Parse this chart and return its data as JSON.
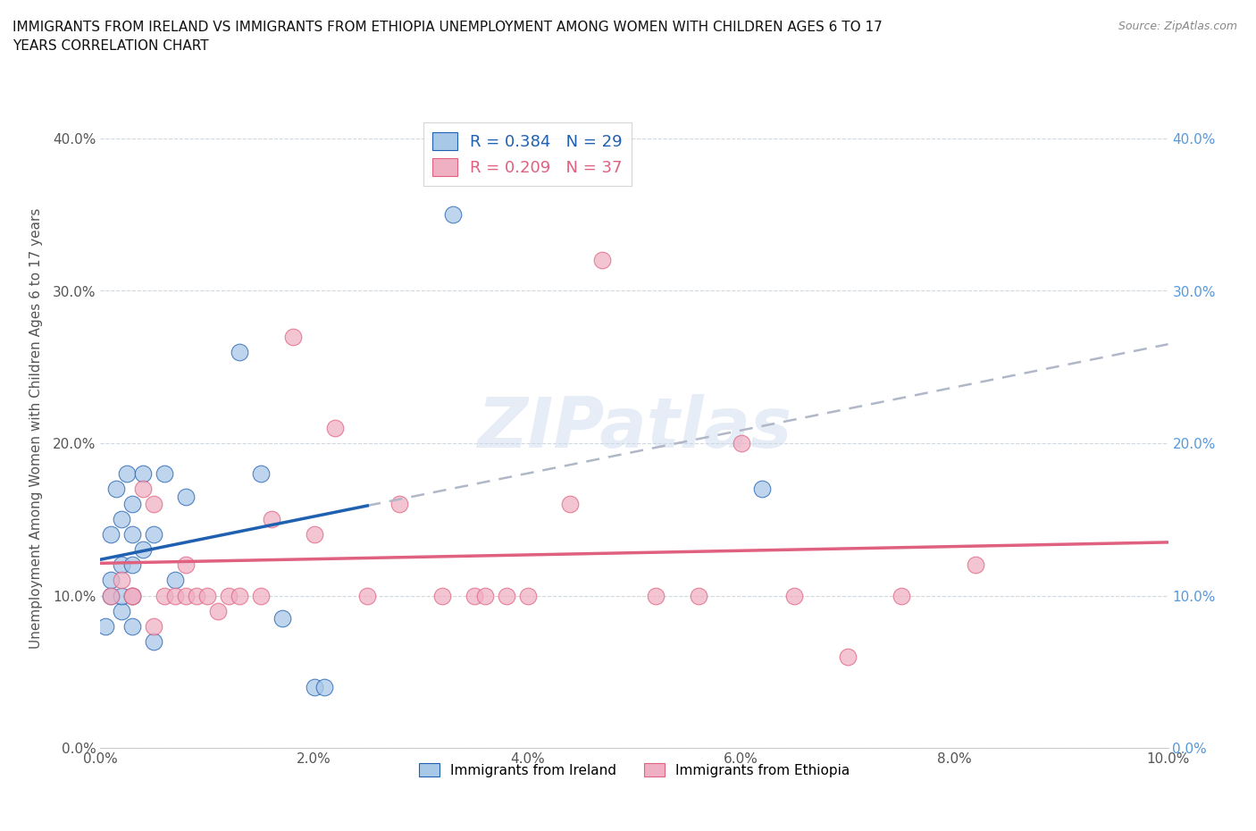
{
  "title": "IMMIGRANTS FROM IRELAND VS IMMIGRANTS FROM ETHIOPIA UNEMPLOYMENT AMONG WOMEN WITH CHILDREN AGES 6 TO 17\nYEARS CORRELATION CHART",
  "source": "Source: ZipAtlas.com",
  "ylabel_label": "Unemployment Among Women with Children Ages 6 to 17 years",
  "xlim": [
    0.0,
    0.1
  ],
  "ylim": [
    0.0,
    0.42
  ],
  "xticks": [
    0.0,
    0.02,
    0.04,
    0.06,
    0.08,
    0.1
  ],
  "yticks": [
    0.0,
    0.1,
    0.2,
    0.3,
    0.4
  ],
  "ireland_color": "#a8c8e8",
  "ireland_line_color": "#2060b0",
  "ireland_dash_color": "#b0b8c8",
  "ethiopia_color": "#f0b0c4",
  "ethiopia_line_color": "#e06080",
  "ireland_R": 0.384,
  "ireland_N": 29,
  "ethiopia_R": 0.209,
  "ethiopia_N": 37,
  "watermark": "ZIPatlas",
  "ireland_x": [
    0.0005,
    0.001,
    0.001,
    0.001,
    0.0015,
    0.002,
    0.002,
    0.002,
    0.002,
    0.0025,
    0.003,
    0.003,
    0.003,
    0.003,
    0.003,
    0.004,
    0.004,
    0.005,
    0.005,
    0.006,
    0.007,
    0.008,
    0.013,
    0.015,
    0.017,
    0.02,
    0.021,
    0.033,
    0.062
  ],
  "ireland_y": [
    0.08,
    0.1,
    0.11,
    0.14,
    0.17,
    0.09,
    0.1,
    0.12,
    0.15,
    0.18,
    0.08,
    0.1,
    0.12,
    0.14,
    0.16,
    0.13,
    0.18,
    0.07,
    0.14,
    0.18,
    0.11,
    0.165,
    0.26,
    0.18,
    0.085,
    0.04,
    0.04,
    0.35,
    0.17
  ],
  "ethiopia_x": [
    0.001,
    0.002,
    0.003,
    0.003,
    0.004,
    0.005,
    0.005,
    0.006,
    0.007,
    0.008,
    0.008,
    0.009,
    0.01,
    0.011,
    0.012,
    0.013,
    0.015,
    0.016,
    0.018,
    0.02,
    0.022,
    0.025,
    0.028,
    0.032,
    0.035,
    0.036,
    0.038,
    0.04,
    0.044,
    0.047,
    0.052,
    0.056,
    0.06,
    0.065,
    0.07,
    0.075,
    0.082
  ],
  "ethiopia_y": [
    0.1,
    0.11,
    0.1,
    0.1,
    0.17,
    0.08,
    0.16,
    0.1,
    0.1,
    0.1,
    0.12,
    0.1,
    0.1,
    0.09,
    0.1,
    0.1,
    0.1,
    0.15,
    0.27,
    0.14,
    0.21,
    0.1,
    0.16,
    0.1,
    0.1,
    0.1,
    0.1,
    0.1,
    0.16,
    0.32,
    0.1,
    0.1,
    0.2,
    0.1,
    0.06,
    0.1,
    0.12
  ],
  "solid_line_end_x": 0.025,
  "dash_line_start_x": 0.025
}
